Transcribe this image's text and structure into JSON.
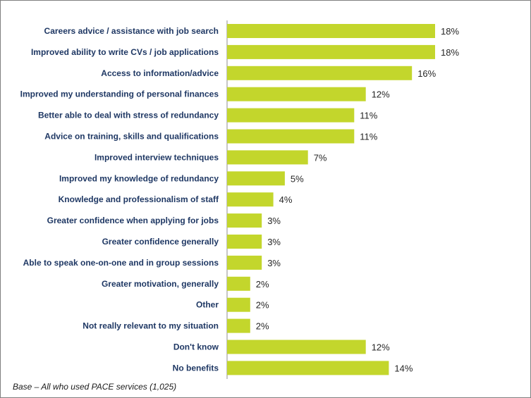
{
  "chart_data": {
    "type": "bar",
    "orientation": "horizontal",
    "categories": [
      "Careers advice / assistance with job search",
      "Improved ability to write CVs / job applications",
      "Access to information/advice",
      "Improved my understanding of personal finances",
      "Better able to deal with stress of redundancy",
      "Advice on training, skills and qualifications",
      "Improved interview techniques",
      "Improved my knowledge of redundancy",
      "Knowledge and professionalism of staff",
      "Greater confidence when applying for jobs",
      "Greater confidence generally",
      "Able to speak one-on-one and in group sessions",
      "Greater motivation, generally",
      "Other",
      "Not really relevant to my situation",
      "Don't know",
      "No benefits"
    ],
    "values": [
      18,
      18,
      16,
      12,
      11,
      11,
      7,
      5,
      4,
      3,
      3,
      3,
      2,
      2,
      2,
      12,
      14
    ],
    "value_labels": [
      "18%",
      "18%",
      "16%",
      "12%",
      "11%",
      "11%",
      "7%",
      "5%",
      "4%",
      "3%",
      "3%",
      "3%",
      "2%",
      "2%",
      "2%",
      "12%",
      "14%"
    ],
    "xlim": [
      0,
      18
    ],
    "grid": false,
    "bar_color": "#c3d62c"
  },
  "footnote": "Base – All who used PACE services (1,025)"
}
